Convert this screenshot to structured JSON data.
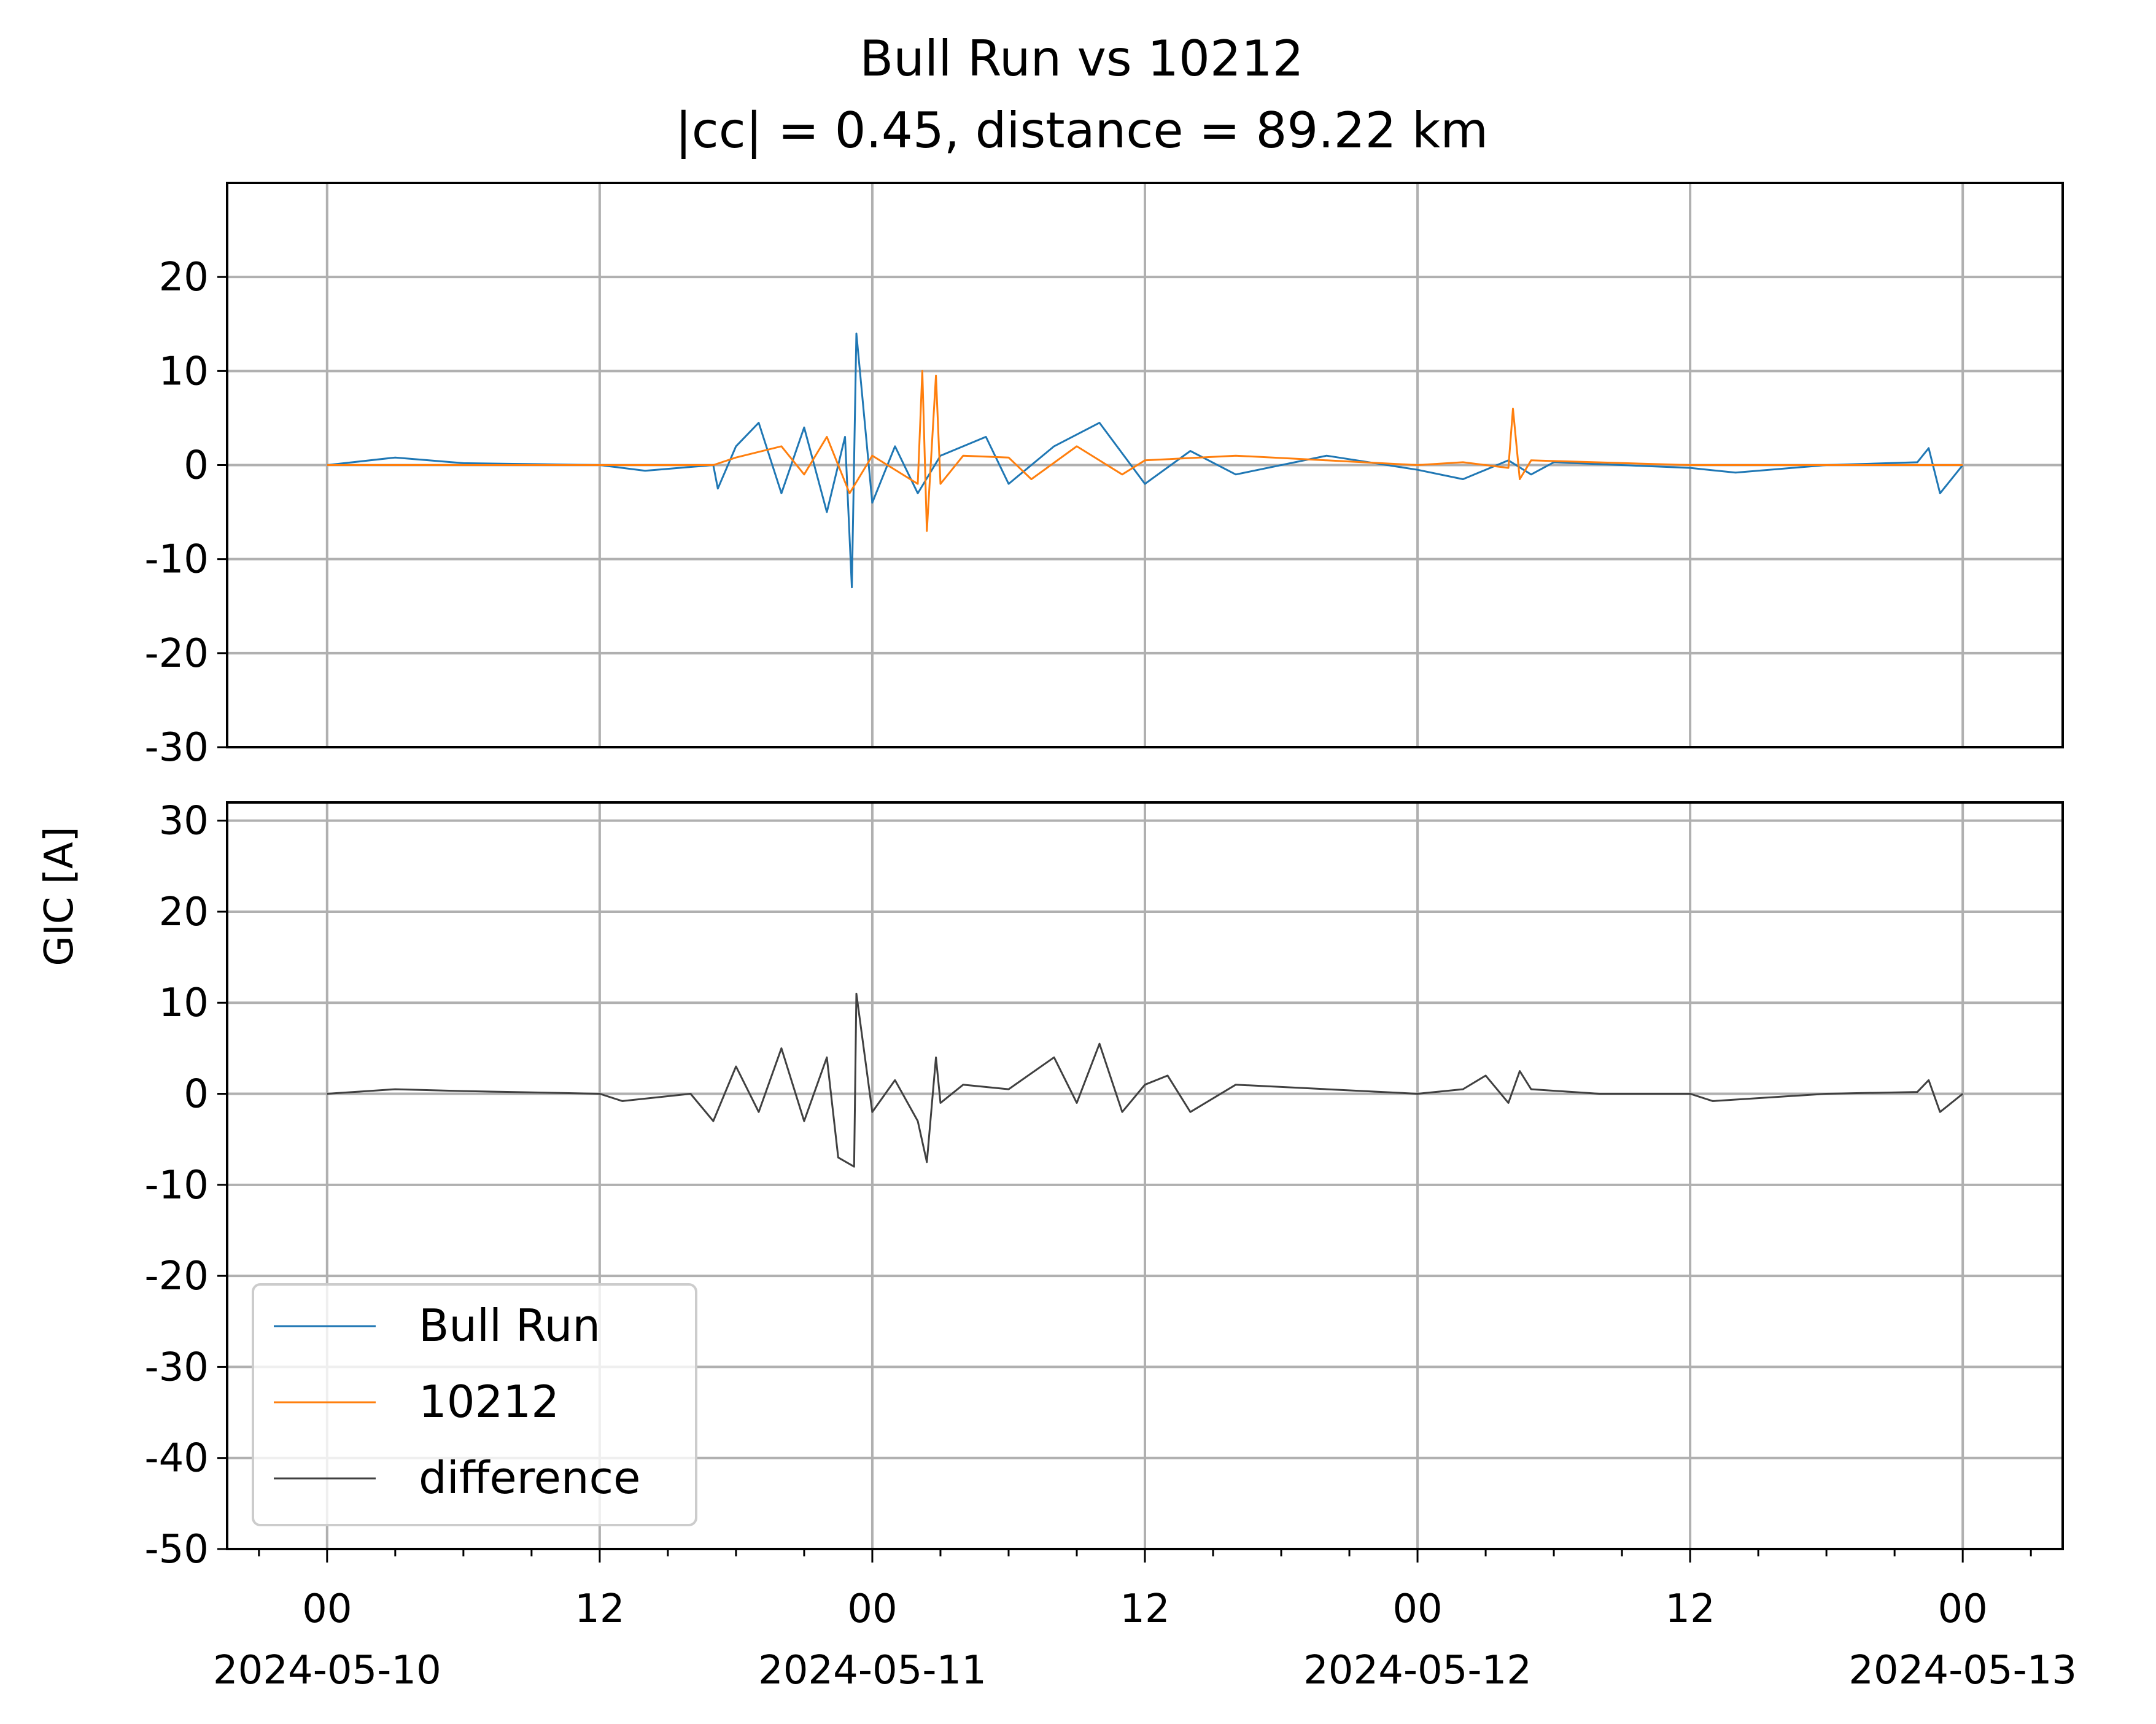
{
  "chart_data": {
    "type": "line",
    "title_line1": "Bull Run vs 10212",
    "title_line2": "|cc| = 0.45, distance = 89.22 km",
    "ylabel": "GIC [A]",
    "xlim_hours": [
      -4.4,
      76.4
    ],
    "x_ticks": [
      {
        "hour": 0,
        "label1": "00",
        "label2": "2024-05-10"
      },
      {
        "hour": 12,
        "label1": "12",
        "label2": ""
      },
      {
        "hour": 24,
        "label1": "00",
        "label2": "2024-05-11"
      },
      {
        "hour": 36,
        "label1": "12",
        "label2": ""
      },
      {
        "hour": 48,
        "label1": "00",
        "label2": "2024-05-12"
      },
      {
        "hour": 60,
        "label1": "12",
        "label2": ""
      },
      {
        "hour": 72,
        "label1": "00",
        "label2": "2024-05-13"
      }
    ],
    "grid": true,
    "legend_position": "lower-left",
    "panels": [
      {
        "ylim": [
          -30,
          30
        ],
        "yticks": [
          20,
          10,
          0,
          -10,
          -20,
          -30
        ],
        "ytick_labels": [
          "20",
          "10",
          "0",
          "-10",
          "-20",
          "-30"
        ],
        "series": [
          {
            "name": "Bull Run",
            "color": "#1f77b4",
            "points": [
              [
                0,
                0
              ],
              [
                3,
                0.8
              ],
              [
                6,
                0.2
              ],
              [
                12,
                0
              ],
              [
                14,
                -0.6
              ],
              [
                17,
                0
              ],
              [
                17.2,
                -2.5
              ],
              [
                18,
                2
              ],
              [
                19,
                4.5
              ],
              [
                20,
                -3
              ],
              [
                21,
                4
              ],
              [
                22,
                -5
              ],
              [
                22.8,
                3
              ],
              [
                23.1,
                -13
              ],
              [
                23.3,
                14
              ],
              [
                24,
                -4
              ],
              [
                25,
                2
              ],
              [
                26,
                -3
              ],
              [
                27,
                1
              ],
              [
                29,
                3
              ],
              [
                30,
                -2
              ],
              [
                32,
                2
              ],
              [
                34,
                4.5
              ],
              [
                36,
                -2
              ],
              [
                38,
                1.5
              ],
              [
                40,
                -1
              ],
              [
                44,
                1
              ],
              [
                48,
                -0.5
              ],
              [
                50,
                -1.5
              ],
              [
                52,
                0.5
              ],
              [
                53,
                -1
              ],
              [
                54,
                0.3
              ],
              [
                60,
                -0.3
              ],
              [
                62,
                -0.8
              ],
              [
                66,
                0
              ],
              [
                70,
                0.3
              ],
              [
                70.5,
                1.8
              ],
              [
                71,
                -3
              ],
              [
                72,
                0
              ]
            ]
          },
          {
            "name": "10212",
            "color": "#ff7f0e",
            "points": [
              [
                0,
                0
              ],
              [
                6,
                0
              ],
              [
                12,
                0
              ],
              [
                17,
                0
              ],
              [
                18,
                0.8
              ],
              [
                20,
                2
              ],
              [
                21,
                -1
              ],
              [
                22,
                3
              ],
              [
                23,
                -3
              ],
              [
                24,
                1
              ],
              [
                26,
                -2
              ],
              [
                26.2,
                10
              ],
              [
                26.4,
                -7
              ],
              [
                26.8,
                9.5
              ],
              [
                27,
                -2
              ],
              [
                28,
                1
              ],
              [
                30,
                0.8
              ],
              [
                31,
                -1.5
              ],
              [
                33,
                2
              ],
              [
                35,
                -1
              ],
              [
                36,
                0.5
              ],
              [
                40,
                1
              ],
              [
                44,
                0.5
              ],
              [
                48,
                0
              ],
              [
                50,
                0.3
              ],
              [
                52,
                -0.3
              ],
              [
                52.2,
                6
              ],
              [
                52.5,
                -1.5
              ],
              [
                53,
                0.5
              ],
              [
                60,
                0
              ],
              [
                66,
                0
              ],
              [
                72,
                0
              ]
            ]
          }
        ]
      },
      {
        "ylim": [
          -50,
          32
        ],
        "yticks": [
          30,
          20,
          10,
          0,
          -10,
          -20,
          -30,
          -40,
          -50
        ],
        "ytick_labels": [
          "30",
          "20",
          "10",
          "0",
          "-10",
          "-20",
          "-30",
          "-40",
          "-50"
        ],
        "series": [
          {
            "name": "difference",
            "color": "#404040",
            "points": [
              [
                0,
                0
              ],
              [
                3,
                0.5
              ],
              [
                6,
                0.3
              ],
              [
                12,
                0
              ],
              [
                13,
                -0.8
              ],
              [
                16,
                0
              ],
              [
                17,
                -3
              ],
              [
                18,
                3
              ],
              [
                19,
                -2
              ],
              [
                20,
                5
              ],
              [
                21,
                -3
              ],
              [
                22,
                4
              ],
              [
                22.5,
                -7
              ],
              [
                23.2,
                -8
              ],
              [
                23.3,
                11
              ],
              [
                24,
                -2
              ],
              [
                25,
                1.5
              ],
              [
                26,
                -3
              ],
              [
                26.4,
                -7.5
              ],
              [
                26.8,
                4
              ],
              [
                27,
                -1
              ],
              [
                28,
                1
              ],
              [
                30,
                0.5
              ],
              [
                32,
                4
              ],
              [
                33,
                -1
              ],
              [
                34,
                5.5
              ],
              [
                35,
                -2
              ],
              [
                36,
                1
              ],
              [
                37,
                2
              ],
              [
                38,
                -2
              ],
              [
                40,
                1
              ],
              [
                44,
                0.5
              ],
              [
                48,
                0
              ],
              [
                50,
                0.5
              ],
              [
                51,
                2
              ],
              [
                52,
                -1
              ],
              [
                52.5,
                2.5
              ],
              [
                53,
                0.5
              ],
              [
                56,
                0
              ],
              [
                60,
                0
              ],
              [
                61,
                -0.8
              ],
              [
                66,
                0
              ],
              [
                70,
                0.2
              ],
              [
                70.5,
                1.5
              ],
              [
                71,
                -2
              ],
              [
                72,
                0
              ]
            ]
          }
        ]
      }
    ],
    "legend": [
      {
        "name": "Bull Run",
        "color": "#1f77b4"
      },
      {
        "name": "10212",
        "color": "#ff7f0e"
      },
      {
        "name": "difference",
        "color": "#404040"
      }
    ]
  }
}
